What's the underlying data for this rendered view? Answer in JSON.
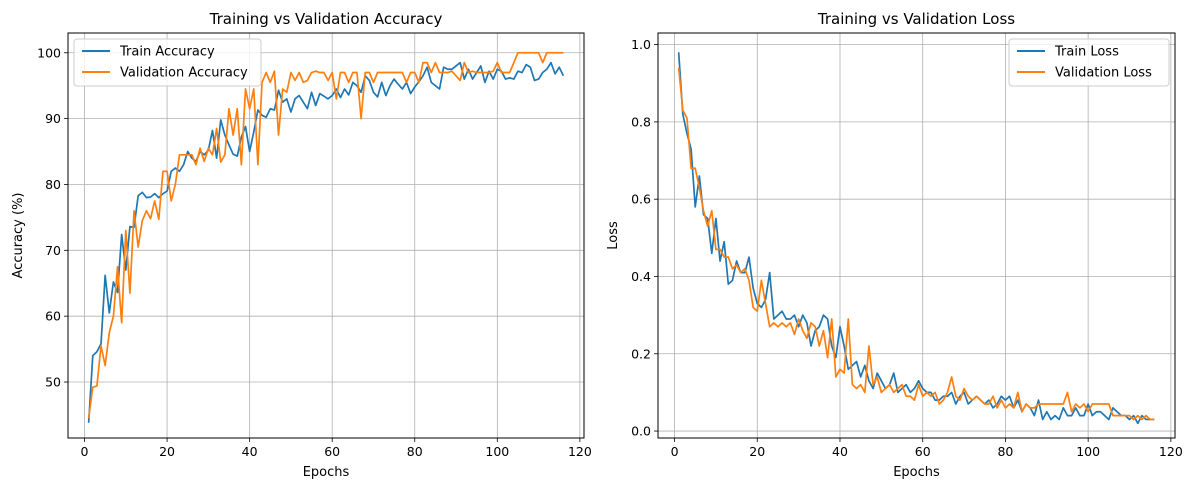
{
  "chart_data": [
    {
      "type": "line",
      "title": "Training vs Validation Accuracy",
      "xlabel": "Epochs",
      "ylabel": "Accuracy (%)",
      "xlim": [
        -4,
        121
      ],
      "ylim": [
        41.5,
        103
      ],
      "xticks": [
        0,
        20,
        40,
        60,
        80,
        100,
        120
      ],
      "yticks": [
        50,
        60,
        70,
        80,
        90,
        100
      ],
      "grid": true,
      "legend_position": "upper-left",
      "x": [
        1,
        2,
        3,
        4,
        5,
        6,
        7,
        8,
        9,
        10,
        11,
        12,
        13,
        14,
        15,
        16,
        17,
        18,
        19,
        20,
        21,
        22,
        23,
        24,
        25,
        26,
        27,
        28,
        29,
        30,
        31,
        32,
        33,
        34,
        35,
        36,
        37,
        38,
        39,
        40,
        41,
        42,
        43,
        44,
        45,
        46,
        47,
        48,
        49,
        50,
        51,
        52,
        53,
        54,
        55,
        56,
        57,
        58,
        59,
        60,
        61,
        62,
        63,
        64,
        65,
        66,
        67,
        68,
        69,
        70,
        71,
        72,
        73,
        74,
        75,
        76,
        77,
        78,
        79,
        80,
        81,
        82,
        83,
        84,
        85,
        86,
        87,
        88,
        89,
        90,
        91,
        92,
        93,
        94,
        95,
        96,
        97,
        98,
        99,
        100,
        101,
        102,
        103,
        104,
        105,
        106,
        107,
        108,
        109,
        110,
        111,
        112,
        113,
        114,
        115,
        116
      ],
      "series": [
        {
          "name": "Train Accuracy",
          "color": "#1f77b4",
          "values": [
            43.8,
            54.0,
            54.6,
            55.8,
            66.2,
            60.5,
            65.2,
            63.6,
            72.4,
            67.0,
            73.6,
            73.5,
            78.3,
            78.8,
            78.0,
            78.1,
            78.6,
            78.0,
            78.6,
            79.0,
            82.0,
            82.5,
            82.0,
            83.0,
            85.0,
            84.0,
            83.5,
            85.0,
            84.5,
            85.2,
            88.2,
            84.0,
            89.8,
            87.5,
            86.0,
            84.6,
            84.3,
            87.2,
            88.8,
            85.0,
            88.0,
            91.3,
            90.5,
            90.2,
            91.5,
            91.3,
            94.3,
            92.5,
            93.0,
            91.0,
            93.0,
            93.5,
            92.5,
            91.5,
            94.0,
            92.0,
            93.8,
            93.4,
            93.0,
            93.5,
            94.5,
            93.2,
            94.5,
            93.6,
            95.5,
            95.0,
            94.0,
            96.5,
            95.8,
            94.0,
            93.3,
            95.5,
            93.5,
            95.0,
            96.0,
            95.2,
            94.5,
            95.5,
            93.8,
            94.8,
            95.6,
            96.5,
            97.8,
            95.5,
            95.0,
            94.5,
            97.8,
            97.5,
            97.5,
            98.0,
            98.5,
            96.0,
            97.5,
            96.0,
            97.0,
            98.0,
            95.5,
            97.2,
            96.0,
            97.5,
            97.2,
            96.0,
            96.2,
            96.0,
            97.2,
            97.0,
            98.2,
            97.8,
            95.8,
            96.0,
            97.0,
            97.5,
            98.5,
            96.8,
            97.8,
            96.5
          ]
        },
        {
          "name": "Validation Accuracy",
          "color": "#ff7f0e",
          "values": [
            44.5,
            49.2,
            49.4,
            55.5,
            52.5,
            57.5,
            60.0,
            67.5,
            59.0,
            73.0,
            63.5,
            76.0,
            70.5,
            74.5,
            76.0,
            74.8,
            77.5,
            74.7,
            82.0,
            82.0,
            77.5,
            80.0,
            84.5,
            84.5,
            84.5,
            84.5,
            83.0,
            85.5,
            83.5,
            85.5,
            84.5,
            88.5,
            83.4,
            84.5,
            91.5,
            87.5,
            91.5,
            83.0,
            94.5,
            91.5,
            94.5,
            83.0,
            95.5,
            97.0,
            95.5,
            97.2,
            87.5,
            94.5,
            94.0,
            97.0,
            95.8,
            97.0,
            95.5,
            95.8,
            97.0,
            97.2,
            97.0,
            97.0,
            95.8,
            97.0,
            93.0,
            97.0,
            97.0,
            95.5,
            97.0,
            97.0,
            90.0,
            97.0,
            97.0,
            95.5,
            97.0,
            97.0,
            97.0,
            97.0,
            97.0,
            97.0,
            97.0,
            95.5,
            97.0,
            97.0,
            95.5,
            98.5,
            98.5,
            97.0,
            98.5,
            97.0,
            97.0,
            97.0,
            97.2,
            96.5,
            95.8,
            98.5,
            97.0,
            97.2,
            97.0,
            97.0,
            97.0,
            97.0,
            97.2,
            98.5,
            97.0,
            97.0,
            97.0,
            98.5,
            100.0,
            100.0,
            100.0,
            100.0,
            100.0,
            100.0,
            98.5,
            100.0,
            100.0,
            100.0,
            100.0,
            100.0
          ]
        }
      ]
    },
    {
      "type": "line",
      "title": "Training vs Validation Loss",
      "xlabel": "Epochs",
      "ylabel": "Loss",
      "xlim": [
        -4,
        121
      ],
      "ylim": [
        -0.018,
        1.03
      ],
      "xticks": [
        0,
        20,
        40,
        60,
        80,
        100,
        120
      ],
      "yticks": [
        0.0,
        0.2,
        0.4,
        0.6,
        0.8,
        1.0
      ],
      "ytick_labels": [
        "0.0",
        "0.2",
        "0.4",
        "0.6",
        "0.8",
        "1.0"
      ],
      "grid": true,
      "legend_position": "upper-right",
      "x": [
        1,
        2,
        3,
        4,
        5,
        6,
        7,
        8,
        9,
        10,
        11,
        12,
        13,
        14,
        15,
        16,
        17,
        18,
        19,
        20,
        21,
        22,
        23,
        24,
        25,
        26,
        27,
        28,
        29,
        30,
        31,
        32,
        33,
        34,
        35,
        36,
        37,
        38,
        39,
        40,
        41,
        42,
        43,
        44,
        45,
        46,
        47,
        48,
        49,
        50,
        51,
        52,
        53,
        54,
        55,
        56,
        57,
        58,
        59,
        60,
        61,
        62,
        63,
        64,
        65,
        66,
        67,
        68,
        69,
        70,
        71,
        72,
        73,
        74,
        75,
        76,
        77,
        78,
        79,
        80,
        81,
        82,
        83,
        84,
        85,
        86,
        87,
        88,
        89,
        90,
        91,
        92,
        93,
        94,
        95,
        96,
        97,
        98,
        99,
        100,
        101,
        102,
        103,
        104,
        105,
        106,
        107,
        108,
        109,
        110,
        111,
        112,
        113,
        114,
        115,
        116
      ],
      "series": [
        {
          "name": "Train Loss",
          "color": "#1f77b4",
          "values": [
            0.98,
            0.82,
            0.77,
            0.73,
            0.58,
            0.66,
            0.56,
            0.55,
            0.46,
            0.55,
            0.44,
            0.49,
            0.38,
            0.39,
            0.44,
            0.41,
            0.41,
            0.45,
            0.37,
            0.33,
            0.32,
            0.34,
            0.41,
            0.29,
            0.3,
            0.31,
            0.29,
            0.29,
            0.3,
            0.27,
            0.3,
            0.28,
            0.22,
            0.26,
            0.27,
            0.3,
            0.29,
            0.22,
            0.19,
            0.27,
            0.22,
            0.16,
            0.17,
            0.18,
            0.14,
            0.17,
            0.13,
            0.11,
            0.15,
            0.13,
            0.11,
            0.12,
            0.15,
            0.1,
            0.11,
            0.12,
            0.1,
            0.11,
            0.13,
            0.11,
            0.1,
            0.1,
            0.08,
            0.08,
            0.09,
            0.09,
            0.1,
            0.07,
            0.09,
            0.1,
            0.07,
            0.08,
            0.09,
            0.08,
            0.07,
            0.08,
            0.06,
            0.07,
            0.09,
            0.08,
            0.09,
            0.06,
            0.08,
            0.05,
            0.07,
            0.06,
            0.04,
            0.08,
            0.03,
            0.05,
            0.03,
            0.04,
            0.03,
            0.06,
            0.04,
            0.04,
            0.06,
            0.04,
            0.04,
            0.07,
            0.04,
            0.05,
            0.05,
            0.04,
            0.03,
            0.06,
            0.05,
            0.04,
            0.04,
            0.03,
            0.04,
            0.02,
            0.04,
            0.03,
            0.03,
            0.03
          ]
        },
        {
          "name": "Validation Loss",
          "color": "#ff7f0e",
          "values": [
            0.94,
            0.83,
            0.81,
            0.68,
            0.68,
            0.63,
            0.57,
            0.53,
            0.57,
            0.47,
            0.47,
            0.45,
            0.45,
            0.42,
            0.43,
            0.41,
            0.42,
            0.39,
            0.32,
            0.31,
            0.39,
            0.33,
            0.27,
            0.28,
            0.27,
            0.28,
            0.27,
            0.28,
            0.25,
            0.29,
            0.26,
            0.24,
            0.28,
            0.27,
            0.22,
            0.26,
            0.19,
            0.29,
            0.14,
            0.16,
            0.15,
            0.29,
            0.12,
            0.11,
            0.12,
            0.1,
            0.22,
            0.12,
            0.14,
            0.1,
            0.11,
            0.12,
            0.1,
            0.11,
            0.12,
            0.09,
            0.09,
            0.08,
            0.12,
            0.09,
            0.1,
            0.09,
            0.1,
            0.07,
            0.08,
            0.1,
            0.14,
            0.09,
            0.08,
            0.11,
            0.09,
            0.08,
            0.09,
            0.08,
            0.07,
            0.07,
            0.09,
            0.06,
            0.08,
            0.06,
            0.07,
            0.06,
            0.1,
            0.05,
            0.07,
            0.06,
            0.06,
            0.07,
            0.07,
            0.07,
            0.07,
            0.07,
            0.07,
            0.07,
            0.1,
            0.05,
            0.07,
            0.06,
            0.07,
            0.05,
            0.07,
            0.07,
            0.07,
            0.07,
            0.07,
            0.04,
            0.04,
            0.04,
            0.04,
            0.04,
            0.03,
            0.04,
            0.03,
            0.04,
            0.03,
            0.03
          ]
        }
      ]
    }
  ]
}
